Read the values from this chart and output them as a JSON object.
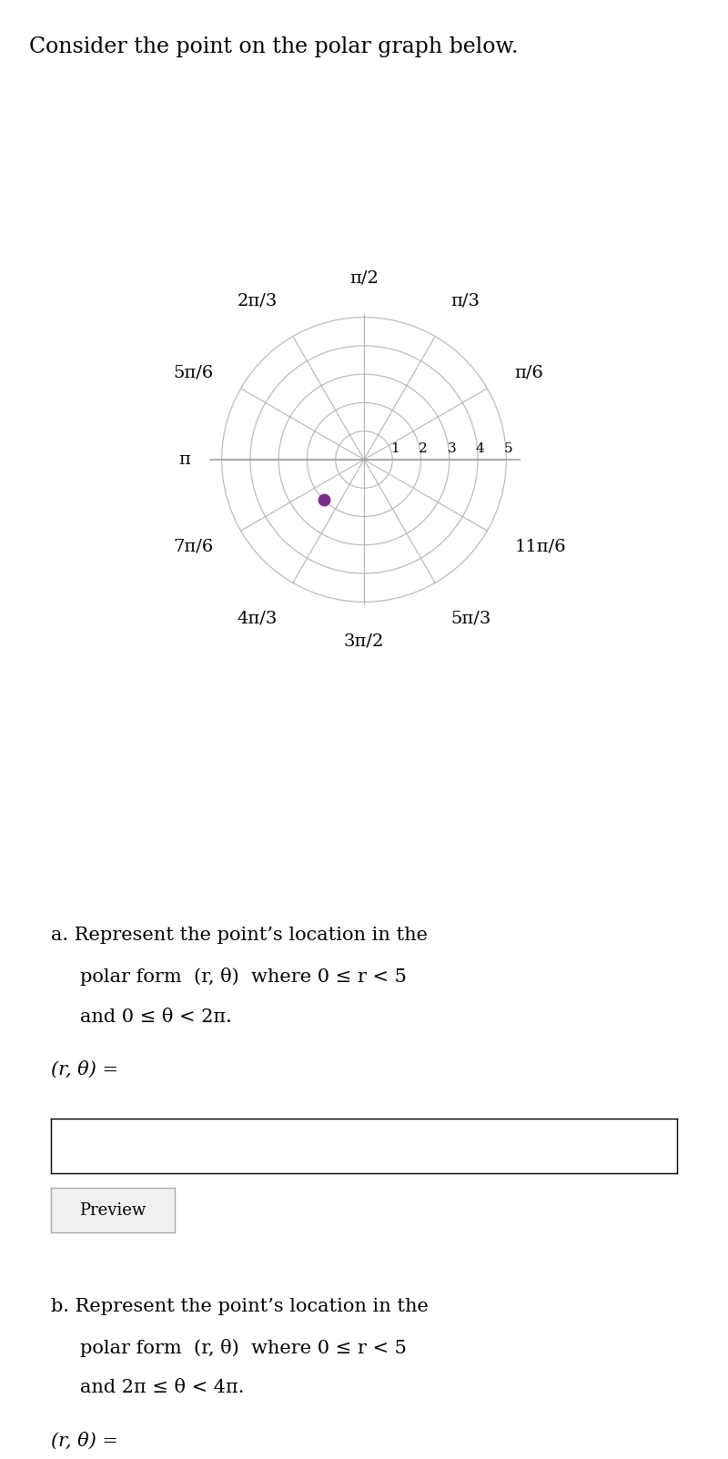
{
  "title": "Consider the point on the polar graph below.",
  "title_fontsize": 17,
  "polar_rmax": 5,
  "polar_rings": [
    1,
    2,
    3,
    4,
    5
  ],
  "ring_labels": [
    "1",
    "2",
    "3",
    "4",
    "5"
  ],
  "angle_lines_deg": [
    0,
    30,
    60,
    90,
    120,
    150,
    180,
    210,
    240,
    270,
    300,
    330
  ],
  "point_r": 2,
  "point_theta_deg": 225,
  "point_color": "#7b2d8b",
  "point_size": 9,
  "grid_color": "#b5b5b5",
  "axis_color": "#999999",
  "bg_color": "#ffffff",
  "body_fontsize": 15,
  "small_fontsize": 13,
  "label_fontsize": 14
}
